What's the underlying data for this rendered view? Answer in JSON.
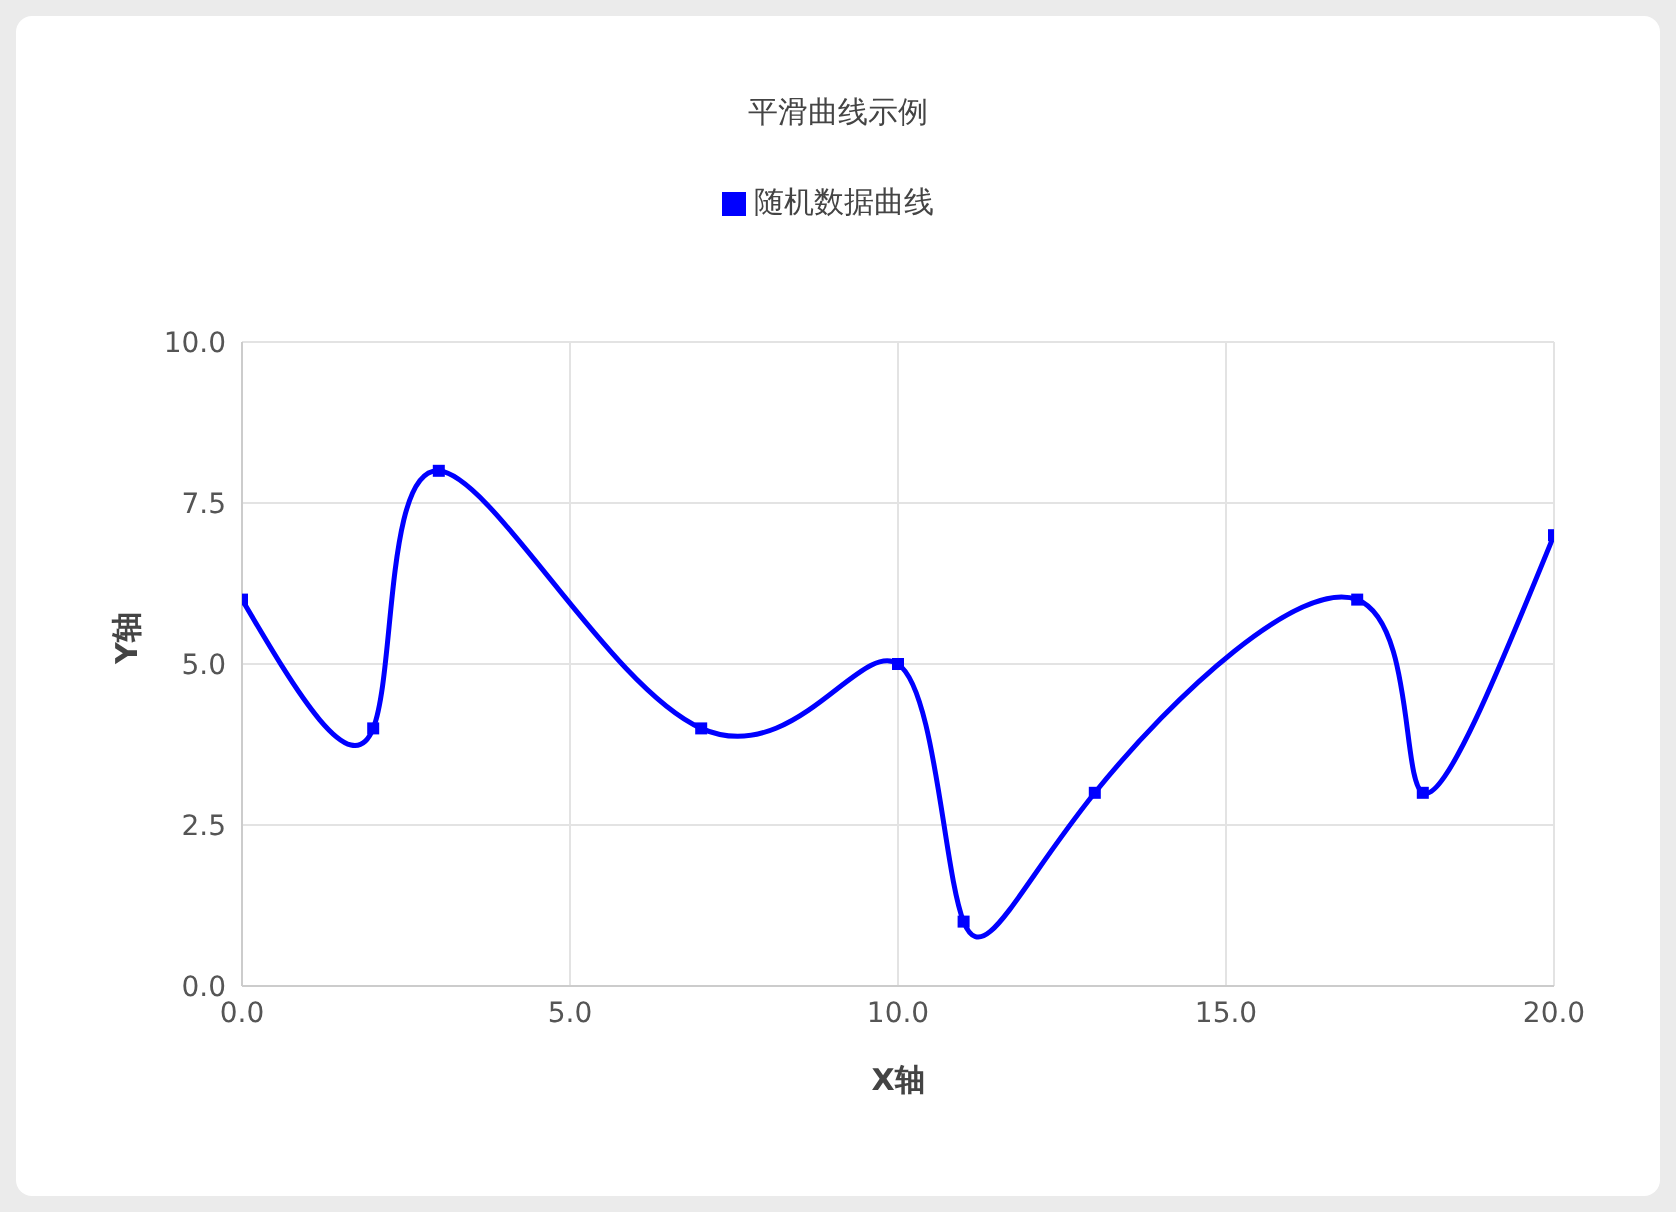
{
  "chart_data": {
    "type": "line",
    "title": "平滑曲线示例",
    "xlabel": "X轴",
    "ylabel": "Y轴",
    "x": [
      0,
      2,
      3,
      7,
      10,
      11,
      13,
      17,
      18,
      20
    ],
    "series": [
      {
        "name": "随机数据曲线",
        "color": "#0000ff",
        "values": [
          6,
          4,
          8,
          4,
          5,
          1,
          3,
          6,
          3,
          7
        ]
      }
    ],
    "xlim": [
      0,
      20
    ],
    "xticks": [
      {
        "value": 0,
        "label": "0.0"
      },
      {
        "value": 5,
        "label": "5.0"
      },
      {
        "value": 10,
        "label": "10.0"
      },
      {
        "value": 15,
        "label": "15.0"
      },
      {
        "value": 20,
        "label": "20.0"
      }
    ],
    "ylim": [
      0,
      10
    ],
    "yticks": [
      {
        "value": 0,
        "label": "0.0"
      },
      {
        "value": 2.5,
        "label": "2.5"
      },
      {
        "value": 5,
        "label": "5.0"
      },
      {
        "value": 7.5,
        "label": "7.5"
      },
      {
        "value": 10,
        "label": "10.0"
      }
    ],
    "grid": true,
    "legend": "top",
    "marker": "square",
    "line_style": "solid"
  }
}
